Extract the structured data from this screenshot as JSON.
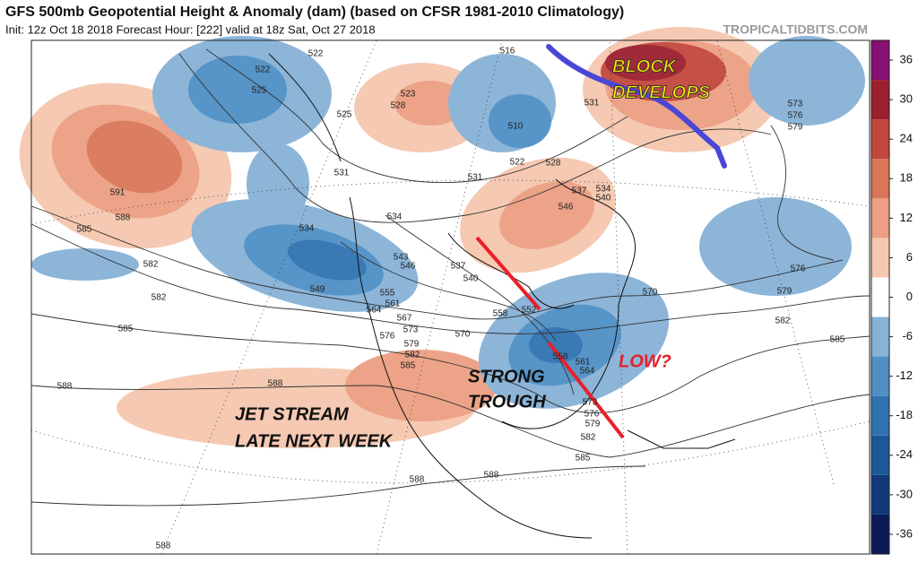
{
  "header": {
    "title": "GFS 500mb Geopotential Height & Anomaly (dam) (based on CFSR 1981-2010 Climatology)",
    "subtitle": "Init: 12z Oct 18 2018   Forecast Hour: [222]   valid at 18z Sat, Oct 27 2018",
    "source": "TROPICALTIDBITS.COM"
  },
  "colorbar": {
    "range": [
      -39,
      39
    ],
    "ticks": [
      36,
      30,
      24,
      18,
      12,
      6,
      0,
      -6,
      -12,
      -18,
      -24,
      -30,
      -36
    ],
    "colors": [
      "#0b1a55",
      "#123a7a",
      "#1d5796",
      "#2f72b0",
      "#4f8fc4",
      "#86b2d6",
      "#ffffff",
      "#f5c7ae",
      "#ec9f82",
      "#da7658",
      "#c2473b",
      "#9c1f2e",
      "#861074"
    ]
  },
  "contour_labels": [
    522,
    522,
    525,
    516,
    531,
    523,
    528,
    525,
    510,
    531,
    522,
    528,
    531,
    537,
    534,
    540,
    546,
    534,
    534,
    591,
    588,
    585,
    582,
    582,
    585,
    543,
    546,
    537,
    540,
    549,
    555,
    561,
    564,
    567,
    552,
    558,
    570,
    573,
    576,
    579,
    582,
    585,
    570,
    576,
    579,
    582,
    585,
    573,
    576,
    579,
    588,
    588,
    585,
    588,
    588,
    588,
    564,
    561,
    558,
    573,
    576,
    579,
    582
  ],
  "annotations": [
    {
      "text": "BLOCK",
      "color": "#ffe600"
    },
    {
      "text": "DEVELOPS",
      "color": "#ffe600"
    },
    {
      "text": "LOW?",
      "color": "#e8202a"
    },
    {
      "text": "STRONG",
      "color": "#111111"
    },
    {
      "text": "TROUGH",
      "color": "#111111"
    },
    {
      "text": "JET STREAM",
      "color": "#111111"
    },
    {
      "text": "LATE NEXT WEEK",
      "color": "#111111"
    }
  ]
}
